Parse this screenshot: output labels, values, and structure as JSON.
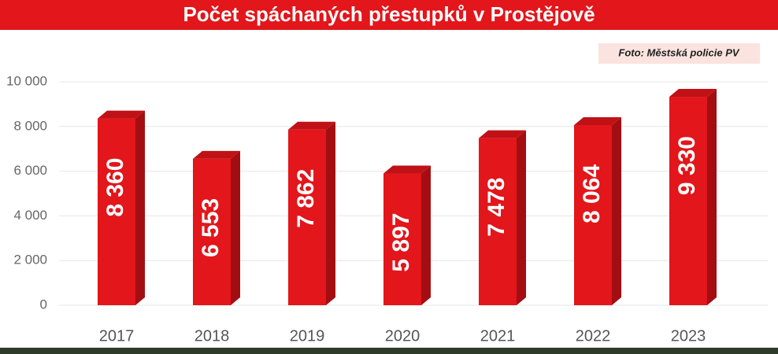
{
  "chart_data": {
    "type": "bar",
    "title": "Počet spáchaných přestupků v Prostějově",
    "credit": "Foto: Městská policie PV",
    "categories": [
      "2017",
      "2018",
      "2019",
      "2020",
      "2021",
      "2022",
      "2023"
    ],
    "values": [
      8360,
      6553,
      7862,
      5897,
      7478,
      8064,
      9330
    ],
    "value_labels": [
      "8 360",
      "6 553",
      "7 862",
      "5 897",
      "7 478",
      "8 064",
      "9 330"
    ],
    "color": "#e2161b",
    "ylim": [
      0,
      10000
    ],
    "yticks": [
      0,
      {
        "value": 2000,
        "label": "2 000"
      },
      {
        "value": 4000,
        "label": "4 000"
      },
      {
        "value": 6000,
        "label": "6 000"
      },
      {
        "value": 8000,
        "label": "8 000"
      },
      {
        "value": 10000,
        "label": "10 000"
      }
    ],
    "grid": true
  }
}
